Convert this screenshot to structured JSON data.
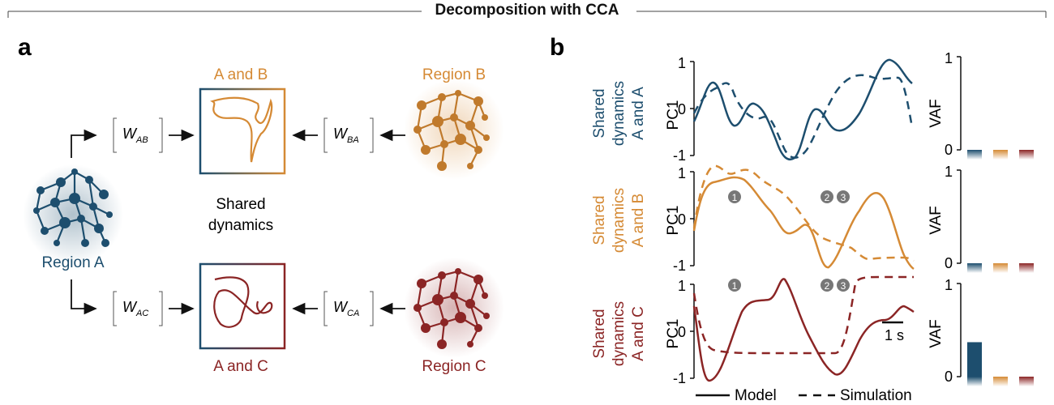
{
  "header": {
    "title": "Decomposition with CCA"
  },
  "panel_a": {
    "label": "a",
    "region_a": "Region A",
    "region_b": "Region B",
    "region_c": "Region C",
    "box_ab": "A and B",
    "box_ac": "A and C",
    "shared_line1": "Shared",
    "shared_line2": "dynamics",
    "w": {
      "ab_main": "W",
      "ab_sub": "AB",
      "ba_main": "W",
      "ba_sub": "BA",
      "ac_main": "W",
      "ac_sub": "AC",
      "ca_main": "W",
      "ca_sub": "CA"
    }
  },
  "panel_b": {
    "label": "b",
    "rows": [
      {
        "line1": "Shared",
        "line2": "dynamics",
        "line3": "A and A",
        "ylabel": "PC1",
        "vaf_label": "VAF",
        "tick_top": "1",
        "tick_mid": "0",
        "tick_bot": "-1",
        "vaf_top": "1",
        "vaf_zero": "0"
      },
      {
        "line1": "Shared",
        "line2": "dynamics",
        "line3": "A and B",
        "ylabel": "PC1",
        "vaf_label": "VAF",
        "tick_top": "1",
        "tick_mid": "0",
        "tick_bot": "-1",
        "vaf_top": "1",
        "vaf_zero": "0",
        "markers": [
          "1",
          "2",
          "3"
        ]
      },
      {
        "line1": "Shared",
        "line2": "dynamics",
        "line3": "A and C",
        "ylabel": "PC1",
        "vaf_label": "VAF",
        "tick_top": "1",
        "tick_mid": "0",
        "tick_bot": "-1",
        "vaf_top": "1",
        "vaf_zero": "0",
        "markers": [
          "1",
          "2",
          "3"
        ]
      }
    ],
    "scale_bar": "1 s",
    "legend": {
      "model": "Model",
      "simulation": "Simulation"
    }
  },
  "colors": {
    "region_a": "#1d4e6e",
    "region_b": "#d58a35",
    "region_c": "#8b2525",
    "marker": "#777777"
  },
  "vaf": {
    "row1": {
      "values": [
        0.0,
        0.0,
        0.0
      ]
    },
    "row2": {
      "values": [
        0.0,
        0.0,
        0.0
      ]
    },
    "row3": {
      "values": [
        0.37,
        0.0,
        0.0
      ]
    }
  }
}
